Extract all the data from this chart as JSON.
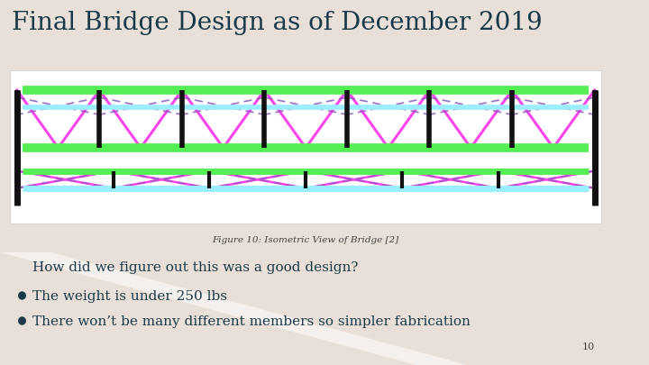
{
  "background_color": "#e8e0d8",
  "title": "Final Bridge Design as of December 2019",
  "title_color": "#1a3a4a",
  "title_fontsize": 20,
  "figure_caption": "Figure 10: Isometric View of Bridge [2]",
  "caption_fontsize": 7.5,
  "caption_color": "#444444",
  "body_text": "How did we figure out this was a good design?",
  "body_color": "#1a3a4a",
  "body_fontsize": 11,
  "bullets": [
    "The weight is under 250 lbs",
    "There won’t be many different members so simpler fabrication"
  ],
  "bullet_color": "#1a3a4a",
  "bullet_fontsize": 11,
  "page_number": "10",
  "image_bg": "#ffffff",
  "green_color": "#55ee55",
  "pink_color": "#ff44ee",
  "cyan_color": "#99eeff",
  "dark_color": "#111111",
  "purple_color": "#8855bb"
}
